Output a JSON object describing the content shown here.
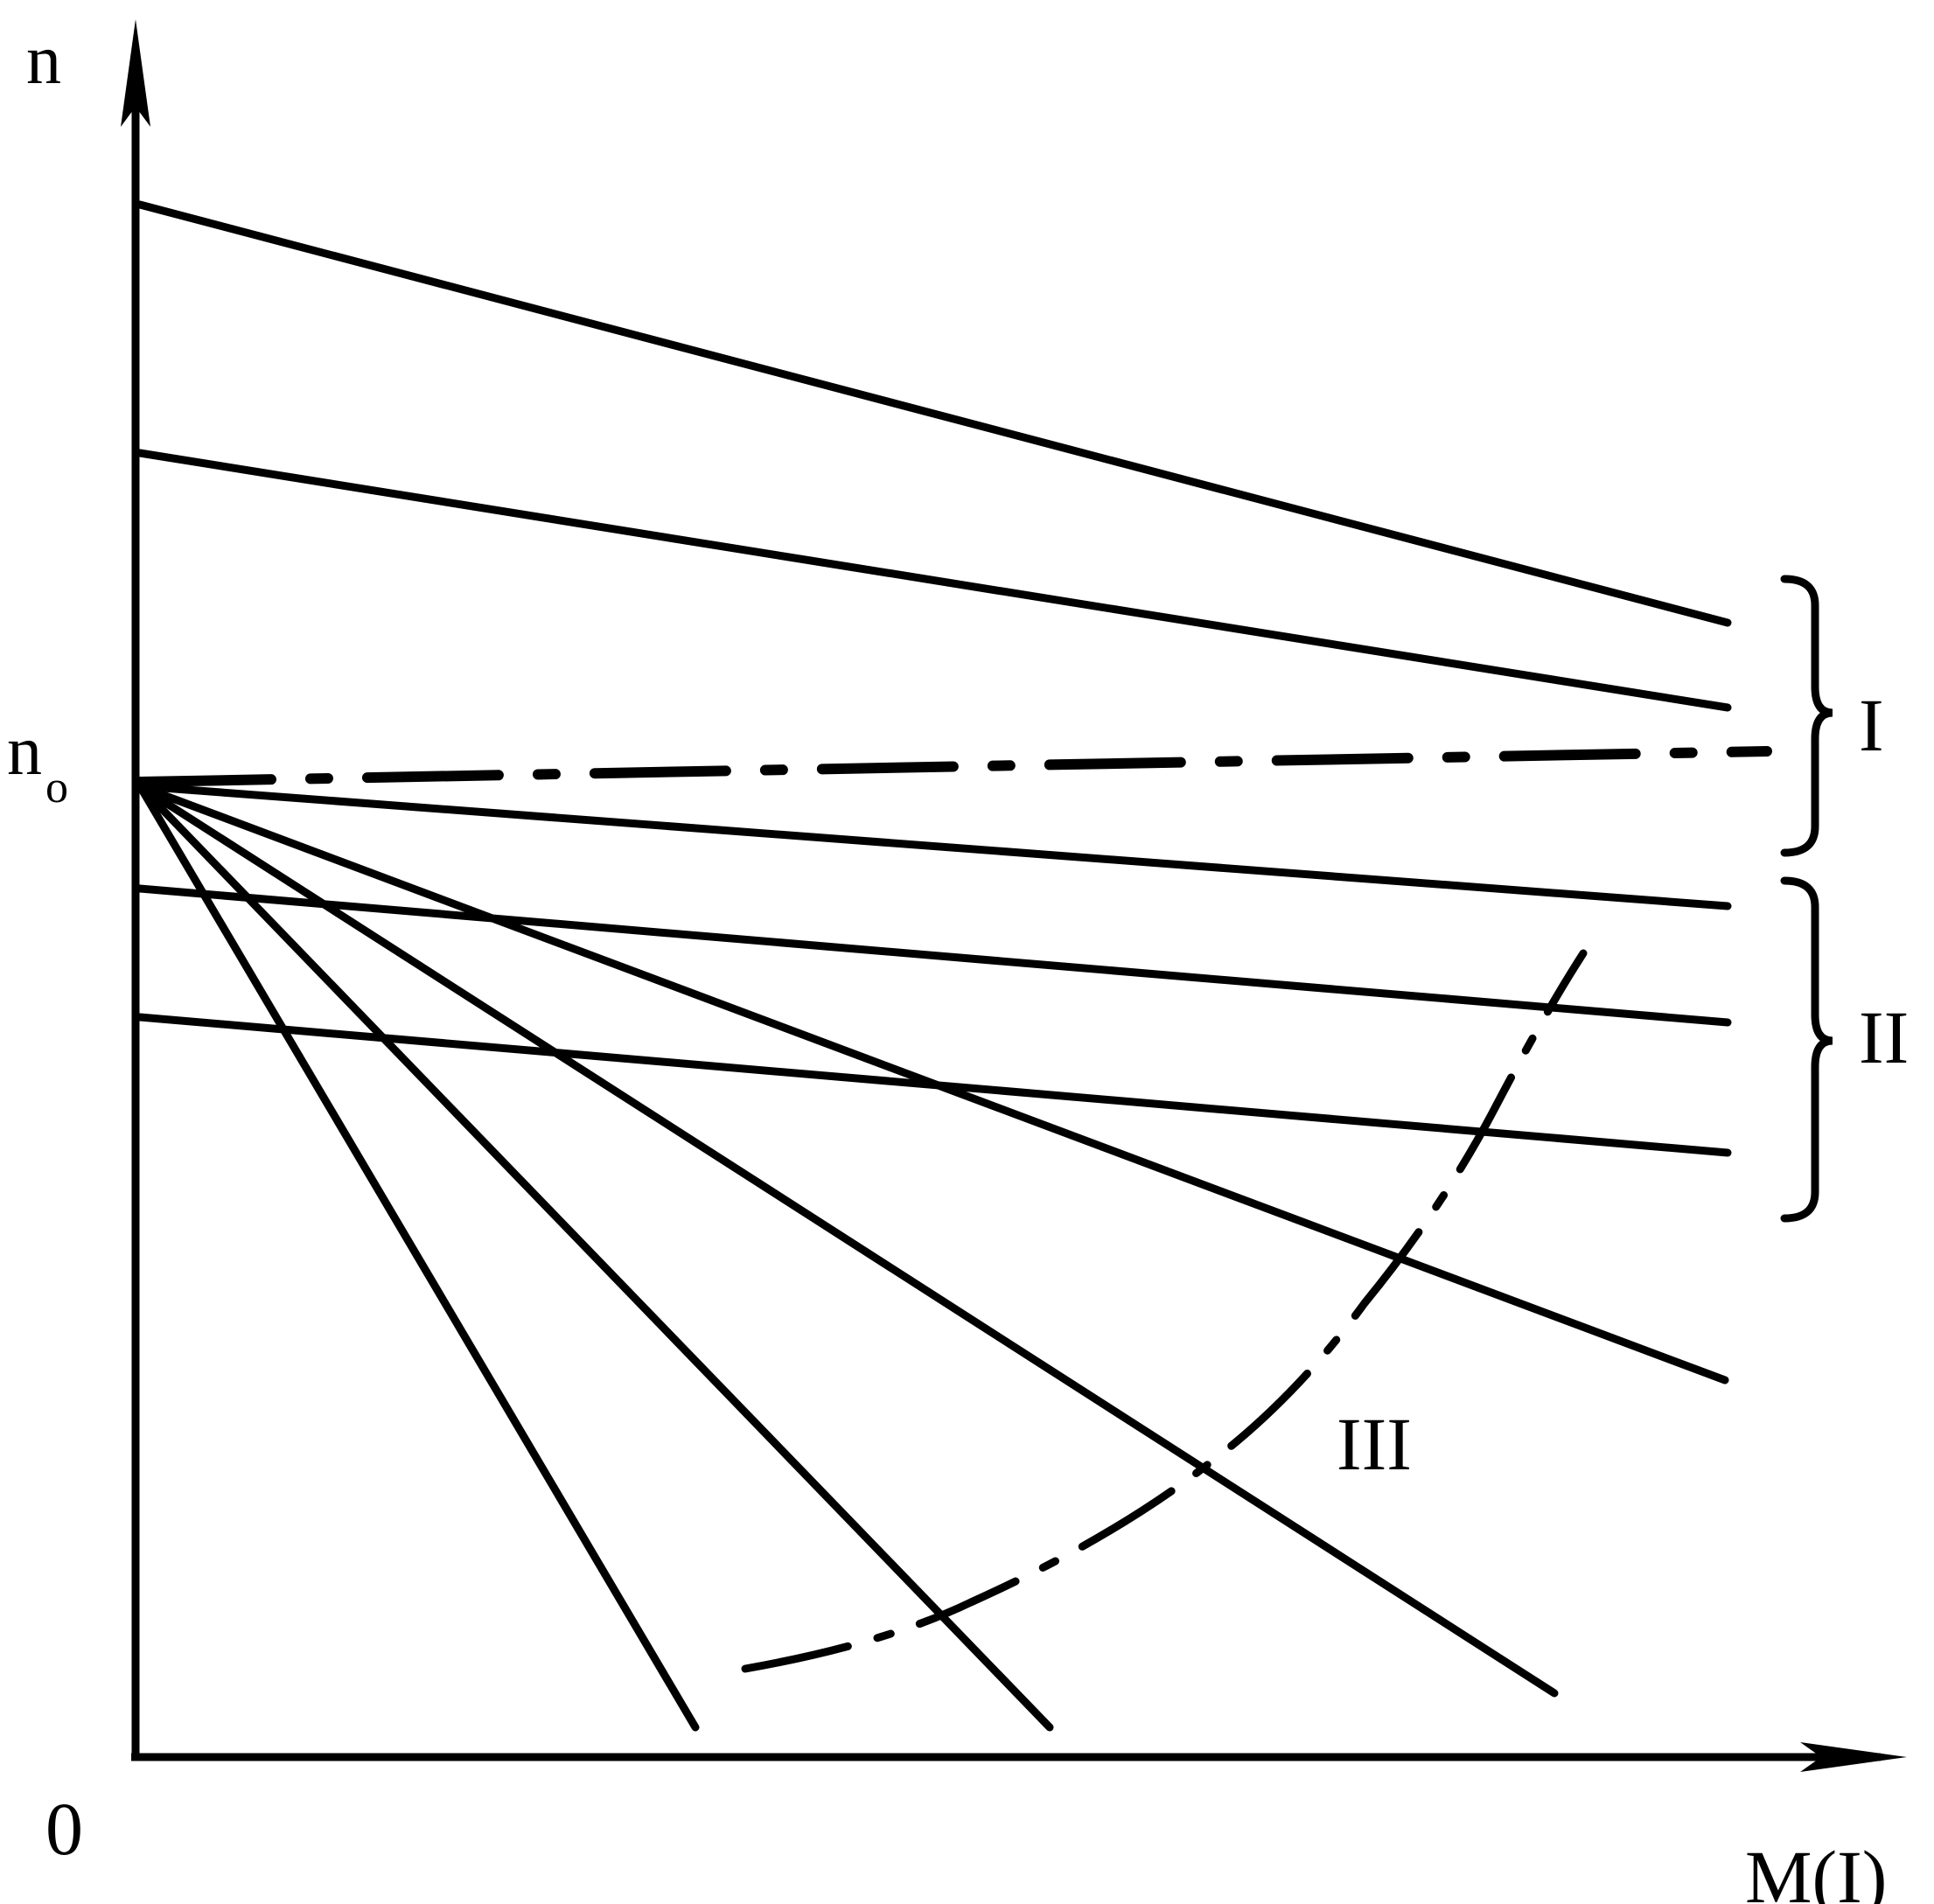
{
  "axes": {
    "y_label": "n",
    "y_ref_main": "n",
    "y_ref_sub": "o",
    "origin_label": "0",
    "x_label": "M(I)"
  },
  "groups": {
    "group_1": "I",
    "group_2": "II",
    "group_3": "III"
  },
  "colors": {
    "ink": "#000000",
    "background": "#ffffff"
  }
}
